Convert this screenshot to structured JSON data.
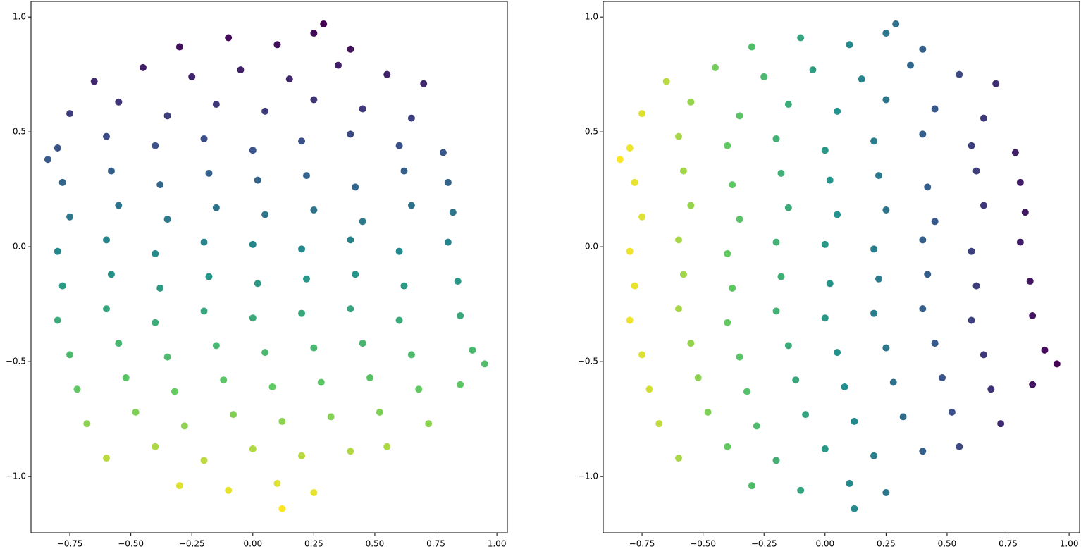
{
  "chart_data": [
    {
      "type": "scatter",
      "cmap": "viridis_r",
      "color_by": "y",
      "x": [
        -0.3,
        -0.1,
        0.1,
        0.25,
        0.4,
        -0.65,
        -0.45,
        -0.25,
        -0.05,
        0.15,
        0.35,
        0.55,
        0.7,
        -0.75,
        -0.55,
        -0.35,
        -0.15,
        0.05,
        0.25,
        0.45,
        0.65,
        -0.8,
        -0.6,
        -0.4,
        -0.2,
        0,
        0.2,
        0.4,
        0.6,
        0.78,
        -0.78,
        -0.58,
        -0.38,
        -0.18,
        0.02,
        0.22,
        0.42,
        0.62,
        0.8,
        -0.75,
        -0.55,
        -0.35,
        -0.15,
        0.05,
        0.25,
        0.45,
        0.65,
        0.82,
        -0.8,
        -0.6,
        -0.4,
        -0.2,
        0,
        0.2,
        0.4,
        0.6,
        0.8,
        -0.78,
        -0.58,
        -0.38,
        -0.18,
        0.02,
        0.22,
        0.42,
        0.62,
        0.84,
        -0.8,
        -0.6,
        -0.4,
        -0.2,
        0,
        0.2,
        0.4,
        0.6,
        0.85,
        -0.75,
        -0.55,
        -0.35,
        -0.15,
        0.05,
        0.25,
        0.45,
        0.65,
        0.9,
        -0.72,
        -0.52,
        -0.32,
        -0.12,
        0.08,
        0.28,
        0.48,
        0.68,
        0.85,
        -0.68,
        -0.48,
        -0.28,
        -0.08,
        0.12,
        0.32,
        0.52,
        0.72,
        -0.6,
        -0.4,
        -0.2,
        0,
        0.2,
        0.4,
        0.55,
        -0.3,
        -0.1,
        0.1,
        0.25,
        -0.84,
        0.95,
        0.12,
        0.29
      ],
      "y": [
        0.87,
        0.91,
        0.88,
        0.93,
        0.86,
        0.72,
        0.78,
        0.74,
        0.77,
        0.73,
        0.79,
        0.75,
        0.71,
        0.58,
        0.63,
        0.57,
        0.62,
        0.59,
        0.64,
        0.6,
        0.56,
        0.43,
        0.48,
        0.44,
        0.47,
        0.42,
        0.46,
        0.49,
        0.44,
        0.41,
        0.28,
        0.33,
        0.27,
        0.32,
        0.29,
        0.31,
        0.26,
        0.33,
        0.28,
        0.13,
        0.18,
        0.12,
        0.17,
        0.14,
        0.16,
        0.11,
        0.18,
        0.15,
        -0.02,
        0.03,
        -0.03,
        0.02,
        0.01,
        -0.01,
        0.03,
        -0.02,
        0.02,
        -0.17,
        -0.12,
        -0.18,
        -0.13,
        -0.16,
        -0.14,
        -0.12,
        -0.17,
        -0.15,
        -0.32,
        -0.27,
        -0.33,
        -0.28,
        -0.31,
        -0.29,
        -0.27,
        -0.32,
        -0.3,
        -0.47,
        -0.42,
        -0.48,
        -0.43,
        -0.46,
        -0.44,
        -0.42,
        -0.47,
        -0.45,
        -0.62,
        -0.57,
        -0.63,
        -0.58,
        -0.61,
        -0.59,
        -0.57,
        -0.62,
        -0.6,
        -0.77,
        -0.72,
        -0.78,
        -0.73,
        -0.76,
        -0.74,
        -0.72,
        -0.77,
        -0.92,
        -0.87,
        -0.93,
        -0.88,
        -0.91,
        -0.89,
        -0.87,
        -1.04,
        -1.06,
        -1.03,
        -1.07,
        0.38,
        -0.51,
        -1.14,
        0.97
      ],
      "xlim": [
        -0.909,
        1.043
      ],
      "ylim": [
        -1.245,
        1.068
      ],
      "xticks": [
        {
          "value": -0.75,
          "label": "−0.75"
        },
        {
          "value": -0.5,
          "label": "−0.50"
        },
        {
          "value": -0.25,
          "label": "−0.25"
        },
        {
          "value": 0,
          "label": "0.00"
        },
        {
          "value": 0.25,
          "label": "0.25"
        },
        {
          "value": 0.5,
          "label": "0.50"
        },
        {
          "value": 0.75,
          "label": "0.75"
        },
        {
          "value": 1,
          "label": "1.00"
        }
      ],
      "yticks": [
        {
          "value": -1,
          "label": "−1.0"
        },
        {
          "value": -0.5,
          "label": "−0.5"
        },
        {
          "value": 0,
          "label": "0.0"
        },
        {
          "value": 0.5,
          "label": "0.5"
        },
        {
          "value": 1,
          "label": "1.0"
        }
      ]
    },
    {
      "type": "scatter",
      "cmap": "viridis_r",
      "color_by": "x",
      "x": [
        -0.3,
        -0.1,
        0.1,
        0.25,
        0.4,
        -0.65,
        -0.45,
        -0.25,
        -0.05,
        0.15,
        0.35,
        0.55,
        0.7,
        -0.75,
        -0.55,
        -0.35,
        -0.15,
        0.05,
        0.25,
        0.45,
        0.65,
        -0.8,
        -0.6,
        -0.4,
        -0.2,
        0,
        0.2,
        0.4,
        0.6,
        0.78,
        -0.78,
        -0.58,
        -0.38,
        -0.18,
        0.02,
        0.22,
        0.42,
        0.62,
        0.8,
        -0.75,
        -0.55,
        -0.35,
        -0.15,
        0.05,
        0.25,
        0.45,
        0.65,
        0.82,
        -0.8,
        -0.6,
        -0.4,
        -0.2,
        0,
        0.2,
        0.4,
        0.6,
        0.8,
        -0.78,
        -0.58,
        -0.38,
        -0.18,
        0.02,
        0.22,
        0.42,
        0.62,
        0.84,
        -0.8,
        -0.6,
        -0.4,
        -0.2,
        0,
        0.2,
        0.4,
        0.6,
        0.85,
        -0.75,
        -0.55,
        -0.35,
        -0.15,
        0.05,
        0.25,
        0.45,
        0.65,
        0.9,
        -0.72,
        -0.52,
        -0.32,
        -0.12,
        0.08,
        0.28,
        0.48,
        0.68,
        0.85,
        -0.68,
        -0.48,
        -0.28,
        -0.08,
        0.12,
        0.32,
        0.52,
        0.72,
        -0.6,
        -0.4,
        -0.2,
        0,
        0.2,
        0.4,
        0.55,
        -0.3,
        -0.1,
        0.1,
        0.25,
        -0.84,
        0.95,
        0.12,
        0.29
      ],
      "y": [
        0.87,
        0.91,
        0.88,
        0.93,
        0.86,
        0.72,
        0.78,
        0.74,
        0.77,
        0.73,
        0.79,
        0.75,
        0.71,
        0.58,
        0.63,
        0.57,
        0.62,
        0.59,
        0.64,
        0.6,
        0.56,
        0.43,
        0.48,
        0.44,
        0.47,
        0.42,
        0.46,
        0.49,
        0.44,
        0.41,
        0.28,
        0.33,
        0.27,
        0.32,
        0.29,
        0.31,
        0.26,
        0.33,
        0.28,
        0.13,
        0.18,
        0.12,
        0.17,
        0.14,
        0.16,
        0.11,
        0.18,
        0.15,
        -0.02,
        0.03,
        -0.03,
        0.02,
        0.01,
        -0.01,
        0.03,
        -0.02,
        0.02,
        -0.17,
        -0.12,
        -0.18,
        -0.13,
        -0.16,
        -0.14,
        -0.12,
        -0.17,
        -0.15,
        -0.32,
        -0.27,
        -0.33,
        -0.28,
        -0.31,
        -0.29,
        -0.27,
        -0.32,
        -0.3,
        -0.47,
        -0.42,
        -0.48,
        -0.43,
        -0.46,
        -0.44,
        -0.42,
        -0.47,
        -0.45,
        -0.62,
        -0.57,
        -0.63,
        -0.58,
        -0.61,
        -0.59,
        -0.57,
        -0.62,
        -0.6,
        -0.77,
        -0.72,
        -0.78,
        -0.73,
        -0.76,
        -0.74,
        -0.72,
        -0.77,
        -0.92,
        -0.87,
        -0.93,
        -0.88,
        -0.91,
        -0.89,
        -0.87,
        -1.04,
        -1.06,
        -1.03,
        -1.07,
        0.38,
        -0.51,
        -1.14,
        0.97
      ],
      "xlim": [
        -0.909,
        1.043
      ],
      "ylim": [
        -1.245,
        1.068
      ],
      "xticks": [
        {
          "value": -0.75,
          "label": "−0.75"
        },
        {
          "value": -0.5,
          "label": "−0.50"
        },
        {
          "value": -0.25,
          "label": "−0.25"
        },
        {
          "value": 0,
          "label": "0.00"
        },
        {
          "value": 0.25,
          "label": "0.25"
        },
        {
          "value": 0.5,
          "label": "0.50"
        },
        {
          "value": 0.75,
          "label": "0.75"
        },
        {
          "value": 1,
          "label": "1.00"
        }
      ],
      "yticks": [
        {
          "value": -1,
          "label": "−1.0"
        },
        {
          "value": -0.5,
          "label": "−0.5"
        },
        {
          "value": 0,
          "label": "0.0"
        },
        {
          "value": 0.5,
          "label": "0.5"
        },
        {
          "value": 1,
          "label": "1.0"
        }
      ]
    }
  ]
}
